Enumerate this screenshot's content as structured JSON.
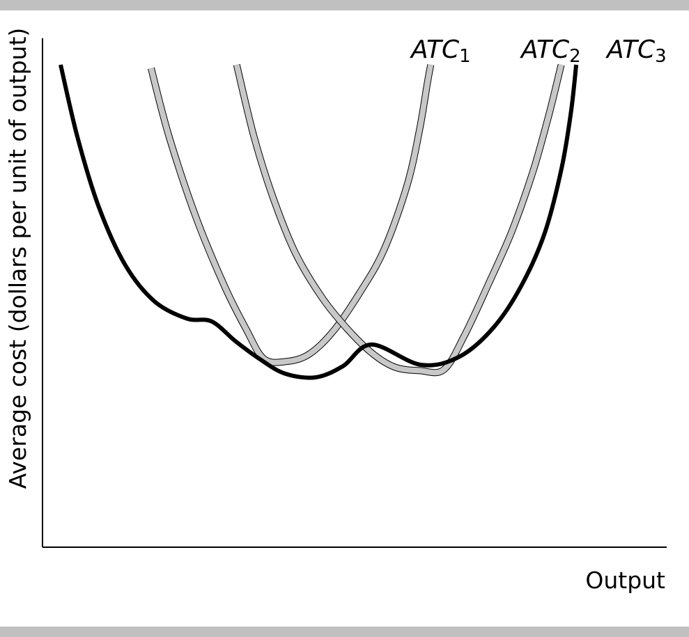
{
  "chart_data": {
    "type": "line",
    "xlabel": "Output",
    "ylabel": "Average cost (dollars per unit of output)",
    "xlim": [
      0,
      100
    ],
    "ylim": [
      0,
      100
    ],
    "grid": false,
    "legend": "curve labels above each curve",
    "series": [
      {
        "id": "atc1",
        "name": "ATC",
        "subscript": "1",
        "style": "light",
        "color": "#c8c8c8",
        "x": [
          17.4,
          20.3,
          24.7,
          29.2,
          32.7,
          35.5,
          39.1,
          42.7,
          46.6,
          50.7,
          54.7,
          58.4,
          60.4,
          61.7,
          62.2
        ],
        "y": [
          99.3,
          85.0,
          68.0,
          54.0,
          45.0,
          39.0,
          38.5,
          40.0,
          44.8,
          52.5,
          61.6,
          75.0,
          86.5,
          96.5,
          100.0
        ]
      },
      {
        "id": "atc2",
        "name": "ATC",
        "subscript": "2",
        "style": "light",
        "color": "#c8c8c8",
        "x": [
          31.1,
          33.9,
          36.9,
          40.5,
          44.8,
          49.0,
          53.0,
          56.5,
          60.4,
          64.3,
          67.6,
          71.4,
          75.2,
          78.6,
          81.1,
          83.1
        ],
        "y": [
          100.0,
          85.0,
          72.6,
          61.0,
          51.7,
          45.0,
          40.0,
          37.3,
          36.6,
          36.8,
          43.9,
          54.4,
          65.5,
          78.0,
          89.5,
          100.0
        ]
      },
      {
        "id": "atc3",
        "name": "ATC",
        "subscript": "3",
        "style": "heavy",
        "color": "#000000",
        "x": [
          2.9,
          5.6,
          9.0,
          13.2,
          17.9,
          23.1,
          27.1,
          31.0,
          34.8,
          38.8,
          43.7,
          48.1,
          52.7,
          60.6,
          66.8,
          72.3,
          76.8,
          80.5,
          83.2,
          84.7,
          85.5
        ],
        "y": [
          100.0,
          85.0,
          70.6,
          58.6,
          51.0,
          47.4,
          46.8,
          42.6,
          39.0,
          36.0,
          35.2,
          37.5,
          42.0,
          37.8,
          39.5,
          45.6,
          54.4,
          65.3,
          78.8,
          90.5,
          100.0
        ]
      }
    ]
  }
}
